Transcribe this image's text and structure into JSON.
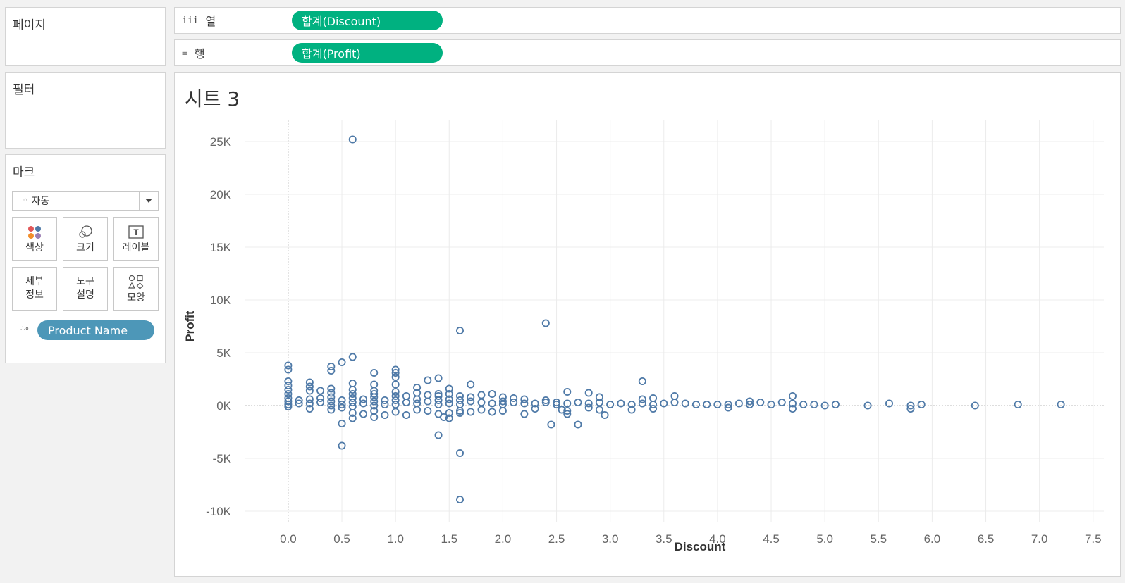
{
  "sidebar": {
    "pages_title": "페이지",
    "filters_title": "필터",
    "marks_title": "마크",
    "mark_type": "자동",
    "buttons": {
      "color": "색상",
      "size": "크기",
      "label": "레이블",
      "detail_line1": "세부",
      "detail_line2": "정보",
      "tooltip_line1": "도구",
      "tooltip_line2": "설명",
      "shape": "모양"
    },
    "detail_pill": "Product Name"
  },
  "shelves": {
    "columns_label": "열",
    "columns_icon": "iii",
    "columns_pill": "합계(Discount)",
    "rows_label": "행",
    "rows_icon": "≡",
    "rows_pill": "합계(Profit)"
  },
  "sheet": {
    "title": "시트 3"
  },
  "colors": {
    "pill_green": "#00b180",
    "pill_blue": "#4d97b8",
    "marker": "#4e79a7"
  },
  "chart_data": {
    "type": "scatter",
    "xlabel": "Discount",
    "ylabel": "Profit",
    "xlim": [
      -0.4,
      7.6
    ],
    "ylim": [
      -11000,
      27000
    ],
    "x_ticks": [
      0.0,
      0.5,
      1.0,
      1.5,
      2.0,
      2.5,
      3.0,
      3.5,
      4.0,
      4.5,
      5.0,
      5.5,
      6.0,
      6.5,
      7.0,
      7.5
    ],
    "x_tick_labels": [
      "0.0",
      "0.5",
      "1.0",
      "1.5",
      "2.0",
      "2.5",
      "3.0",
      "3.5",
      "4.0",
      "4.5",
      "5.0",
      "5.5",
      "6.0",
      "6.5",
      "7.0",
      "7.5"
    ],
    "y_ticks": [
      -10000,
      -5000,
      0,
      5000,
      10000,
      15000,
      20000,
      25000
    ],
    "y_tick_labels": [
      "-10K",
      "-5K",
      "0K",
      "5K",
      "10K",
      "15K",
      "20K",
      "25K"
    ],
    "grid": true,
    "marker": "open-circle",
    "points": [
      [
        0.6,
        25200
      ],
      [
        2.4,
        7800
      ],
      [
        1.6,
        7100
      ],
      [
        0.6,
        4600
      ],
      [
        0.5,
        4100
      ],
      [
        0.4,
        3700
      ],
      [
        0.4,
        3300
      ],
      [
        0.0,
        3800
      ],
      [
        0.0,
        3400
      ],
      [
        1.0,
        3400
      ],
      [
        1.0,
        3100
      ],
      [
        0.8,
        3100
      ],
      [
        1.0,
        2700
      ],
      [
        1.4,
        2600
      ],
      [
        1.3,
        2400
      ],
      [
        3.3,
        2300
      ],
      [
        1.7,
        2000
      ],
      [
        1.0,
        2000
      ],
      [
        0.8,
        2000
      ],
      [
        0.6,
        2100
      ],
      [
        0.2,
        2200
      ],
      [
        0.0,
        2300
      ],
      [
        0.0,
        1900
      ],
      [
        0.2,
        1800
      ],
      [
        0.4,
        1600
      ],
      [
        1.2,
        1700
      ],
      [
        1.5,
        1600
      ],
      [
        0.3,
        1400
      ],
      [
        2.6,
        1300
      ],
      [
        2.8,
        1200
      ],
      [
        1.9,
        1100
      ],
      [
        1.4,
        1100
      ],
      [
        0.2,
        1400
      ],
      [
        0.0,
        1500
      ],
      [
        0.0,
        1100
      ],
      [
        0.4,
        1200
      ],
      [
        0.6,
        1500
      ],
      [
        0.6,
        1100
      ],
      [
        0.8,
        1400
      ],
      [
        0.8,
        1100
      ],
      [
        1.0,
        1300
      ],
      [
        1.1,
        900
      ],
      [
        1.2,
        1200
      ],
      [
        1.3,
        1000
      ],
      [
        1.4,
        900
      ],
      [
        1.5,
        1100
      ],
      [
        1.6,
        900
      ],
      [
        1.7,
        800
      ],
      [
        1.8,
        1000
      ],
      [
        2.0,
        800
      ],
      [
        2.1,
        700
      ],
      [
        2.2,
        600
      ],
      [
        2.4,
        500
      ],
      [
        2.9,
        800
      ],
      [
        3.3,
        600
      ],
      [
        3.4,
        700
      ],
      [
        3.6,
        900
      ],
      [
        4.7,
        900
      ],
      [
        0.1,
        500
      ],
      [
        0.0,
        700
      ],
      [
        0.0,
        400
      ],
      [
        0.0,
        100
      ],
      [
        0.1,
        200
      ],
      [
        0.2,
        600
      ],
      [
        0.2,
        200
      ],
      [
        0.3,
        700
      ],
      [
        0.3,
        300
      ],
      [
        0.4,
        800
      ],
      [
        0.4,
        400
      ],
      [
        0.4,
        0
      ],
      [
        0.5,
        500
      ],
      [
        0.5,
        100
      ],
      [
        0.6,
        700
      ],
      [
        0.6,
        300
      ],
      [
        0.6,
        -100
      ],
      [
        0.7,
        600
      ],
      [
        0.7,
        200
      ],
      [
        0.8,
        800
      ],
      [
        0.8,
        400
      ],
      [
        0.8,
        0
      ],
      [
        0.9,
        500
      ],
      [
        0.9,
        100
      ],
      [
        1.0,
        900
      ],
      [
        1.0,
        500
      ],
      [
        1.0,
        100
      ],
      [
        1.1,
        300
      ],
      [
        1.2,
        600
      ],
      [
        1.2,
        200
      ],
      [
        1.3,
        400
      ],
      [
        1.4,
        500
      ],
      [
        1.4,
        100
      ],
      [
        1.5,
        600
      ],
      [
        1.5,
        200
      ],
      [
        1.6,
        500
      ],
      [
        1.6,
        100
      ],
      [
        1.7,
        400
      ],
      [
        1.8,
        300
      ],
      [
        1.9,
        200
      ],
      [
        2.0,
        400
      ],
      [
        2.0,
        100
      ],
      [
        2.1,
        300
      ],
      [
        2.2,
        200
      ],
      [
        2.3,
        200
      ],
      [
        2.4,
        300
      ],
      [
        2.5,
        100
      ],
      [
        2.5,
        300
      ],
      [
        2.6,
        200
      ],
      [
        2.7,
        300
      ],
      [
        2.8,
        200
      ],
      [
        2.9,
        300
      ],
      [
        3.0,
        100
      ],
      [
        3.1,
        200
      ],
      [
        3.2,
        100
      ],
      [
        3.3,
        200
      ],
      [
        3.4,
        100
      ],
      [
        3.5,
        200
      ],
      [
        3.6,
        300
      ],
      [
        3.7,
        200
      ],
      [
        3.8,
        100
      ],
      [
        3.9,
        100
      ],
      [
        4.0,
        100
      ],
      [
        4.1,
        100
      ],
      [
        4.2,
        200
      ],
      [
        4.3,
        100
      ],
      [
        4.3,
        400
      ],
      [
        4.4,
        300
      ],
      [
        4.5,
        100
      ],
      [
        4.6,
        300
      ],
      [
        4.7,
        200
      ],
      [
        4.8,
        100
      ],
      [
        4.9,
        100
      ],
      [
        5.0,
        0
      ],
      [
        5.1,
        100
      ],
      [
        5.4,
        0
      ],
      [
        5.6,
        200
      ],
      [
        5.8,
        0
      ],
      [
        5.9,
        100
      ],
      [
        6.4,
        0
      ],
      [
        6.8,
        100
      ],
      [
        7.2,
        100
      ],
      [
        0.0,
        -100
      ],
      [
        0.2,
        -300
      ],
      [
        0.4,
        -400
      ],
      [
        0.5,
        -200
      ],
      [
        0.6,
        -700
      ],
      [
        0.6,
        -1200
      ],
      [
        0.7,
        -800
      ],
      [
        0.8,
        -500
      ],
      [
        0.8,
        -1100
      ],
      [
        0.9,
        -900
      ],
      [
        1.0,
        -600
      ],
      [
        1.1,
        -900
      ],
      [
        1.2,
        -400
      ],
      [
        1.3,
        -500
      ],
      [
        1.4,
        -800
      ],
      [
        1.45,
        -1100
      ],
      [
        1.5,
        -700
      ],
      [
        1.5,
        -1200
      ],
      [
        1.6,
        -500
      ],
      [
        1.6,
        -700
      ],
      [
        1.7,
        -600
      ],
      [
        1.8,
        -400
      ],
      [
        1.9,
        -600
      ],
      [
        2.0,
        -500
      ],
      [
        2.2,
        -800
      ],
      [
        2.3,
        -300
      ],
      [
        2.55,
        -400
      ],
      [
        2.6,
        -800
      ],
      [
        2.6,
        -500
      ],
      [
        2.8,
        -200
      ],
      [
        2.9,
        -400
      ],
      [
        2.95,
        -900
      ],
      [
        3.2,
        -400
      ],
      [
        3.4,
        -300
      ],
      [
        4.1,
        -200
      ],
      [
        4.7,
        -300
      ],
      [
        5.8,
        -300
      ],
      [
        0.5,
        -1700
      ],
      [
        2.45,
        -1800
      ],
      [
        2.7,
        -1800
      ],
      [
        1.4,
        -2800
      ],
      [
        0.5,
        -3800
      ],
      [
        1.6,
        -4500
      ],
      [
        1.6,
        -8900
      ]
    ]
  }
}
